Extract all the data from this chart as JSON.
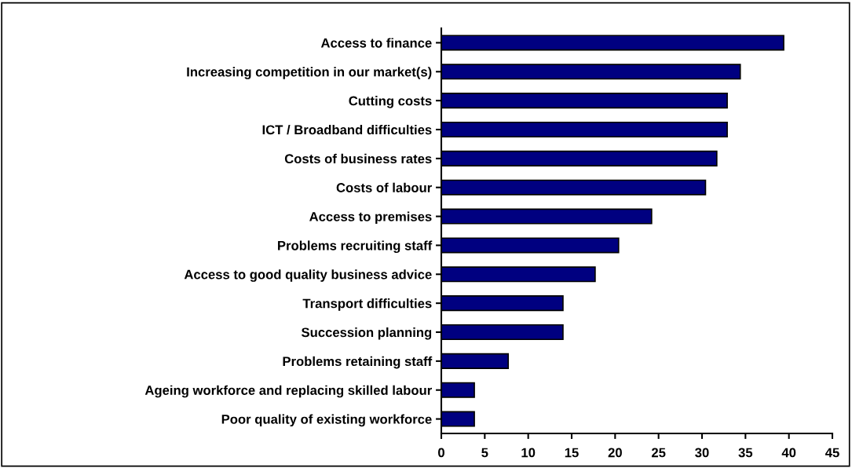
{
  "chart_data": {
    "type": "bar",
    "orientation": "horizontal",
    "categories": [
      "Access to finance",
      "Increasing competition in our market(s)",
      "Cutting costs",
      "ICT / Broadband difficulties",
      "Costs of business rates",
      "Costs of labour",
      "Access to premises",
      "Problems recruiting staff",
      "Access to good quality business advice",
      "Transport difficulties",
      "Succession planning",
      "Problems retaining staff",
      "Ageing workforce and replacing skilled labour",
      "Poor quality of existing workforce"
    ],
    "values": [
      39.4,
      34.4,
      32.9,
      32.9,
      31.7,
      30.4,
      24.2,
      20.4,
      17.7,
      14.0,
      14.0,
      7.7,
      3.8,
      3.8
    ],
    "color": "#000080",
    "xlim": [
      0,
      45
    ],
    "xticks": [
      0,
      5,
      10,
      15,
      20,
      25,
      30,
      35,
      40,
      45
    ],
    "grid": false
  }
}
